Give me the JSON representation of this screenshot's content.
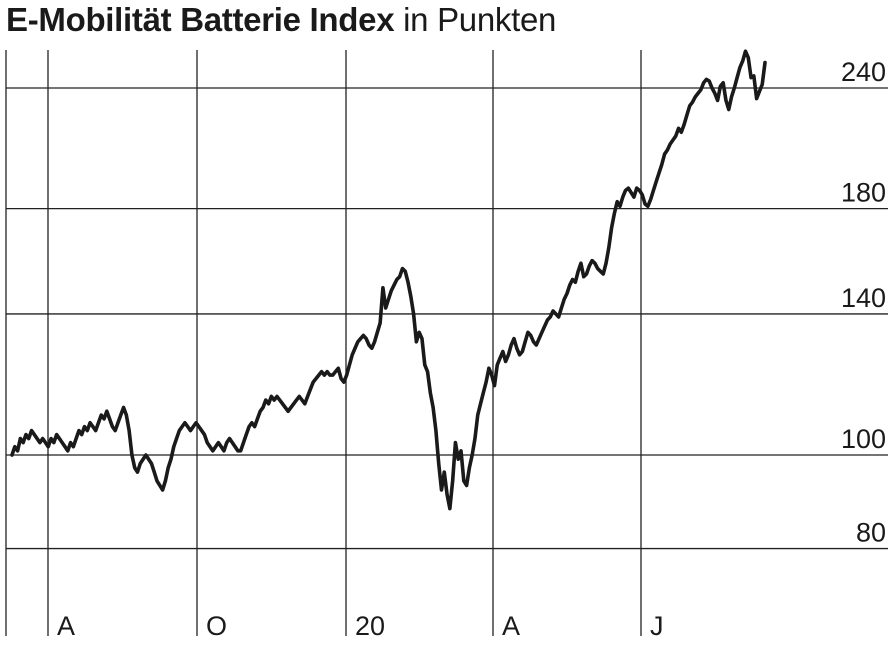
{
  "chart_data": {
    "type": "line",
    "title": "E-Mobilität Batterie Index",
    "subtitle": "in Punkten",
    "xlabel": "",
    "ylabel": "",
    "y_scale": "log",
    "ylim": [
      71,
      265
    ],
    "y_ticks": [
      80,
      100,
      140,
      180,
      240
    ],
    "x_ticks": [
      "A",
      "O",
      "20",
      "A",
      "J"
    ],
    "grid": true,
    "series": [
      {
        "values": [
          100,
          102,
          101,
          104,
          103,
          105,
          104,
          106,
          105,
          104,
          103,
          104,
          103,
          102,
          104,
          103,
          105,
          104,
          103,
          102,
          101,
          103,
          102,
          104,
          106,
          105,
          107,
          106,
          108,
          107,
          106,
          108,
          110,
          109,
          111,
          109,
          107,
          106,
          108,
          110,
          112,
          110,
          106,
          100,
          97,
          96,
          98,
          99,
          100,
          99,
          98,
          96,
          94,
          93,
          92,
          94,
          97,
          99,
          102,
          104,
          106,
          107,
          108,
          107,
          106,
          107,
          108,
          107,
          106,
          105,
          103,
          102,
          101,
          102,
          103,
          102,
          101,
          103,
          104,
          103,
          102,
          101,
          101,
          103,
          105,
          107,
          108,
          107,
          109,
          111,
          112,
          114,
          113,
          115,
          114,
          115,
          114,
          113,
          112,
          111,
          112,
          113,
          114,
          115,
          114,
          113,
          115,
          117,
          119,
          120,
          121,
          122,
          121,
          122,
          121,
          121,
          122,
          123,
          120,
          119,
          121,
          124,
          127,
          129,
          131,
          132,
          133,
          132,
          130,
          129,
          131,
          134,
          137,
          149,
          142,
          145,
          148,
          150,
          152,
          153,
          156,
          155,
          151,
          146,
          140,
          131,
          134,
          132,
          124,
          122,
          116,
          112,
          106,
          98,
          92,
          96,
          91,
          88,
          94,
          103,
          99,
          101,
          94,
          93,
          97,
          100,
          104,
          110,
          113,
          116,
          119,
          123,
          121,
          118,
          124,
          126,
          128,
          125,
          127,
          130,
          132,
          129,
          127,
          128,
          131,
          134,
          133,
          131,
          130,
          132,
          134,
          136,
          138,
          139,
          141,
          140,
          139,
          142,
          145,
          147,
          150,
          152,
          151,
          155,
          158,
          153,
          154,
          157,
          159,
          158,
          156,
          155,
          154,
          158,
          164,
          172,
          178,
          183,
          181,
          185,
          188,
          189,
          187,
          185,
          189,
          188,
          186,
          182,
          181,
          184,
          188,
          192,
          196,
          200,
          205,
          207,
          210,
          212,
          214,
          218,
          216,
          220,
          225,
          230,
          232,
          235,
          237,
          239,
          243,
          245,
          244,
          240,
          237,
          233,
          241,
          243,
          233,
          228,
          235,
          240,
          246,
          252,
          256,
          262,
          258,
          246,
          247,
          234,
          238,
          242,
          255
        ]
      }
    ]
  }
}
